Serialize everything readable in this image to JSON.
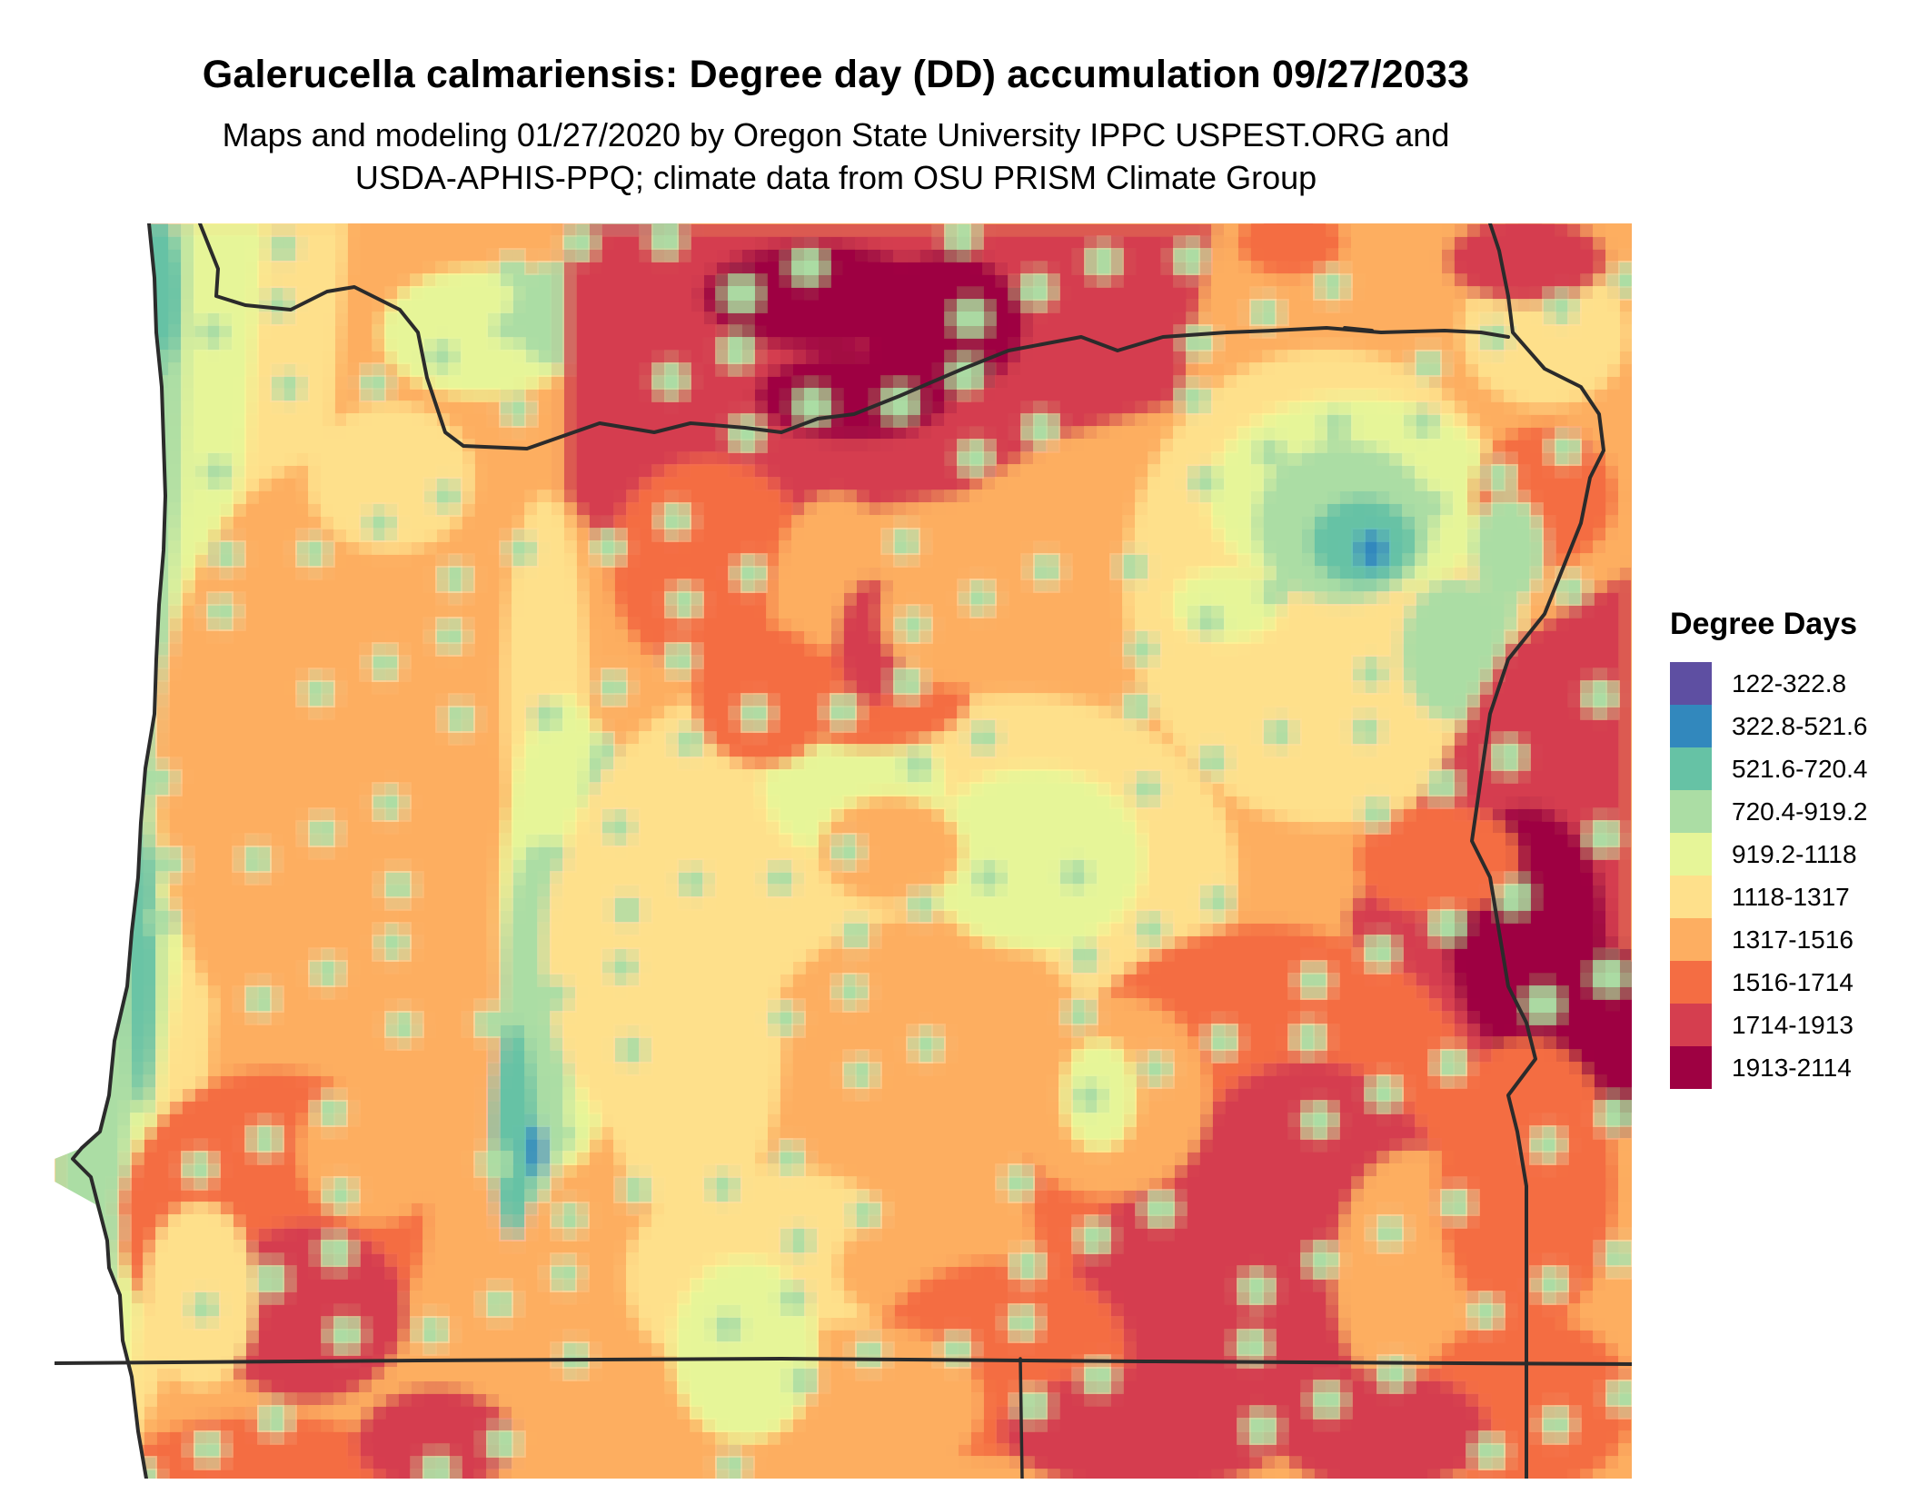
{
  "map": {
    "title": "Galerucella calmariensis: Degree day (DD) accumulation 09/27/2033",
    "subtitle_line1": "Maps and modeling 01/27/2020 by Oregon State University IPPC USPEST.ORG and",
    "subtitle_line2": "USDA-APHIS-PPQ; climate data from OSU PRISM Climate Group",
    "region": "Oregon",
    "palette": "spectral",
    "border_color": "#2b2b2b"
  },
  "legend": {
    "title": "Degree Days",
    "items": [
      {
        "label": "122-322.8",
        "color": "#5e4fa2"
      },
      {
        "label": "322.8-521.6",
        "color": "#3288bd"
      },
      {
        "label": "521.6-720.4",
        "color": "#66c2a5"
      },
      {
        "label": "720.4-919.2",
        "color": "#abdda4"
      },
      {
        "label": "919.2-1118",
        "color": "#e6f598"
      },
      {
        "label": "1118-1317",
        "color": "#fee08b"
      },
      {
        "label": "1317-1516",
        "color": "#fdae61"
      },
      {
        "label": "1516-1714",
        "color": "#f46d43"
      },
      {
        "label": "1714-1913",
        "color": "#d53e4f"
      },
      {
        "label": "1913-2114",
        "color": "#9e0142"
      }
    ]
  }
}
